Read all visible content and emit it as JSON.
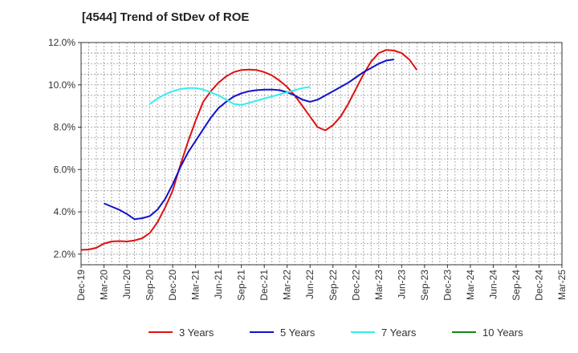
{
  "chart_data": {
    "type": "line",
    "title": "[4544]  Trend of StDev of ROE",
    "xlabel": "",
    "ylabel": "",
    "x_ticks": [
      "Dec-19",
      "Mar-20",
      "Jun-20",
      "Sep-20",
      "Dec-20",
      "Mar-21",
      "Jun-21",
      "Sep-21",
      "Dec-21",
      "Mar-22",
      "Jun-22",
      "Sep-22",
      "Dec-22",
      "Mar-23",
      "Jun-23",
      "Sep-23",
      "Dec-23",
      "Mar-24",
      "Jun-24",
      "Sep-24",
      "Dec-24",
      "Mar-25"
    ],
    "y_ticks": [
      "2.0%",
      "4.0%",
      "6.0%",
      "8.0%",
      "10.0%",
      "12.0%"
    ],
    "ylim": [
      1.5,
      12.0
    ],
    "grid": true,
    "legend_position": "bottom",
    "series": [
      {
        "name": "3 Years",
        "color": "#dd1111",
        "values": [
          [
            0,
            2.2
          ],
          [
            1,
            2.22
          ],
          [
            2,
            2.3
          ],
          [
            3,
            2.5
          ],
          [
            4,
            2.6
          ],
          [
            5,
            2.62
          ],
          [
            6,
            2.6
          ],
          [
            7,
            2.65
          ],
          [
            8,
            2.75
          ],
          [
            9,
            3.0
          ],
          [
            10,
            3.5
          ],
          [
            11,
            4.2
          ],
          [
            12,
            5.0
          ],
          [
            13,
            6.2
          ],
          [
            14,
            7.3
          ],
          [
            15,
            8.3
          ],
          [
            16,
            9.2
          ],
          [
            17,
            9.7
          ],
          [
            18,
            10.1
          ],
          [
            19,
            10.4
          ],
          [
            20,
            10.6
          ],
          [
            21,
            10.7
          ],
          [
            22,
            10.72
          ],
          [
            23,
            10.7
          ],
          [
            24,
            10.6
          ],
          [
            25,
            10.45
          ],
          [
            26,
            10.2
          ],
          [
            27,
            9.9
          ],
          [
            28,
            9.5
          ],
          [
            29,
            9.0
          ],
          [
            30,
            8.5
          ],
          [
            31,
            8.0
          ],
          [
            32,
            7.85
          ],
          [
            33,
            8.1
          ],
          [
            34,
            8.5
          ],
          [
            35,
            9.1
          ],
          [
            36,
            9.8
          ],
          [
            37,
            10.5
          ],
          [
            38,
            11.1
          ],
          [
            39,
            11.5
          ],
          [
            40,
            11.65
          ],
          [
            41,
            11.62
          ],
          [
            42,
            11.5
          ],
          [
            43,
            11.2
          ],
          [
            44,
            10.7
          ]
        ]
      },
      {
        "name": "5 Years",
        "color": "#1111cc",
        "values": [
          [
            3,
            4.4
          ],
          [
            4,
            4.25
          ],
          [
            5,
            4.1
          ],
          [
            6,
            3.9
          ],
          [
            7,
            3.65
          ],
          [
            8,
            3.7
          ],
          [
            9,
            3.8
          ],
          [
            10,
            4.1
          ],
          [
            11,
            4.6
          ],
          [
            12,
            5.3
          ],
          [
            13,
            6.1
          ],
          [
            14,
            6.8
          ],
          [
            15,
            7.35
          ],
          [
            16,
            7.9
          ],
          [
            17,
            8.45
          ],
          [
            18,
            8.9
          ],
          [
            19,
            9.2
          ],
          [
            20,
            9.45
          ],
          [
            21,
            9.6
          ],
          [
            22,
            9.7
          ],
          [
            23,
            9.75
          ],
          [
            24,
            9.77
          ],
          [
            25,
            9.78
          ],
          [
            26,
            9.75
          ],
          [
            27,
            9.65
          ],
          [
            28,
            9.5
          ],
          [
            29,
            9.3
          ],
          [
            30,
            9.2
          ],
          [
            31,
            9.3
          ],
          [
            32,
            9.5
          ],
          [
            33,
            9.7
          ],
          [
            34,
            9.9
          ],
          [
            35,
            10.1
          ],
          [
            36,
            10.35
          ],
          [
            37,
            10.6
          ],
          [
            38,
            10.8
          ],
          [
            39,
            11.0
          ],
          [
            40,
            11.15
          ],
          [
            41,
            11.2
          ]
        ]
      },
      {
        "name": "7 Years",
        "color": "#33eeee",
        "values": [
          [
            9,
            9.1
          ],
          [
            10,
            9.35
          ],
          [
            11,
            9.55
          ],
          [
            12,
            9.7
          ],
          [
            13,
            9.8
          ],
          [
            14,
            9.85
          ],
          [
            15,
            9.85
          ],
          [
            16,
            9.78
          ],
          [
            17,
            9.65
          ],
          [
            18,
            9.5
          ],
          [
            19,
            9.3
          ],
          [
            20,
            9.1
          ],
          [
            21,
            9.05
          ],
          [
            22,
            9.15
          ],
          [
            23,
            9.25
          ],
          [
            24,
            9.35
          ],
          [
            25,
            9.45
          ],
          [
            26,
            9.55
          ],
          [
            27,
            9.65
          ],
          [
            28,
            9.75
          ],
          [
            29,
            9.85
          ],
          [
            30,
            9.9
          ]
        ]
      },
      {
        "name": "10 Years",
        "color": "#118811",
        "values": []
      }
    ]
  }
}
